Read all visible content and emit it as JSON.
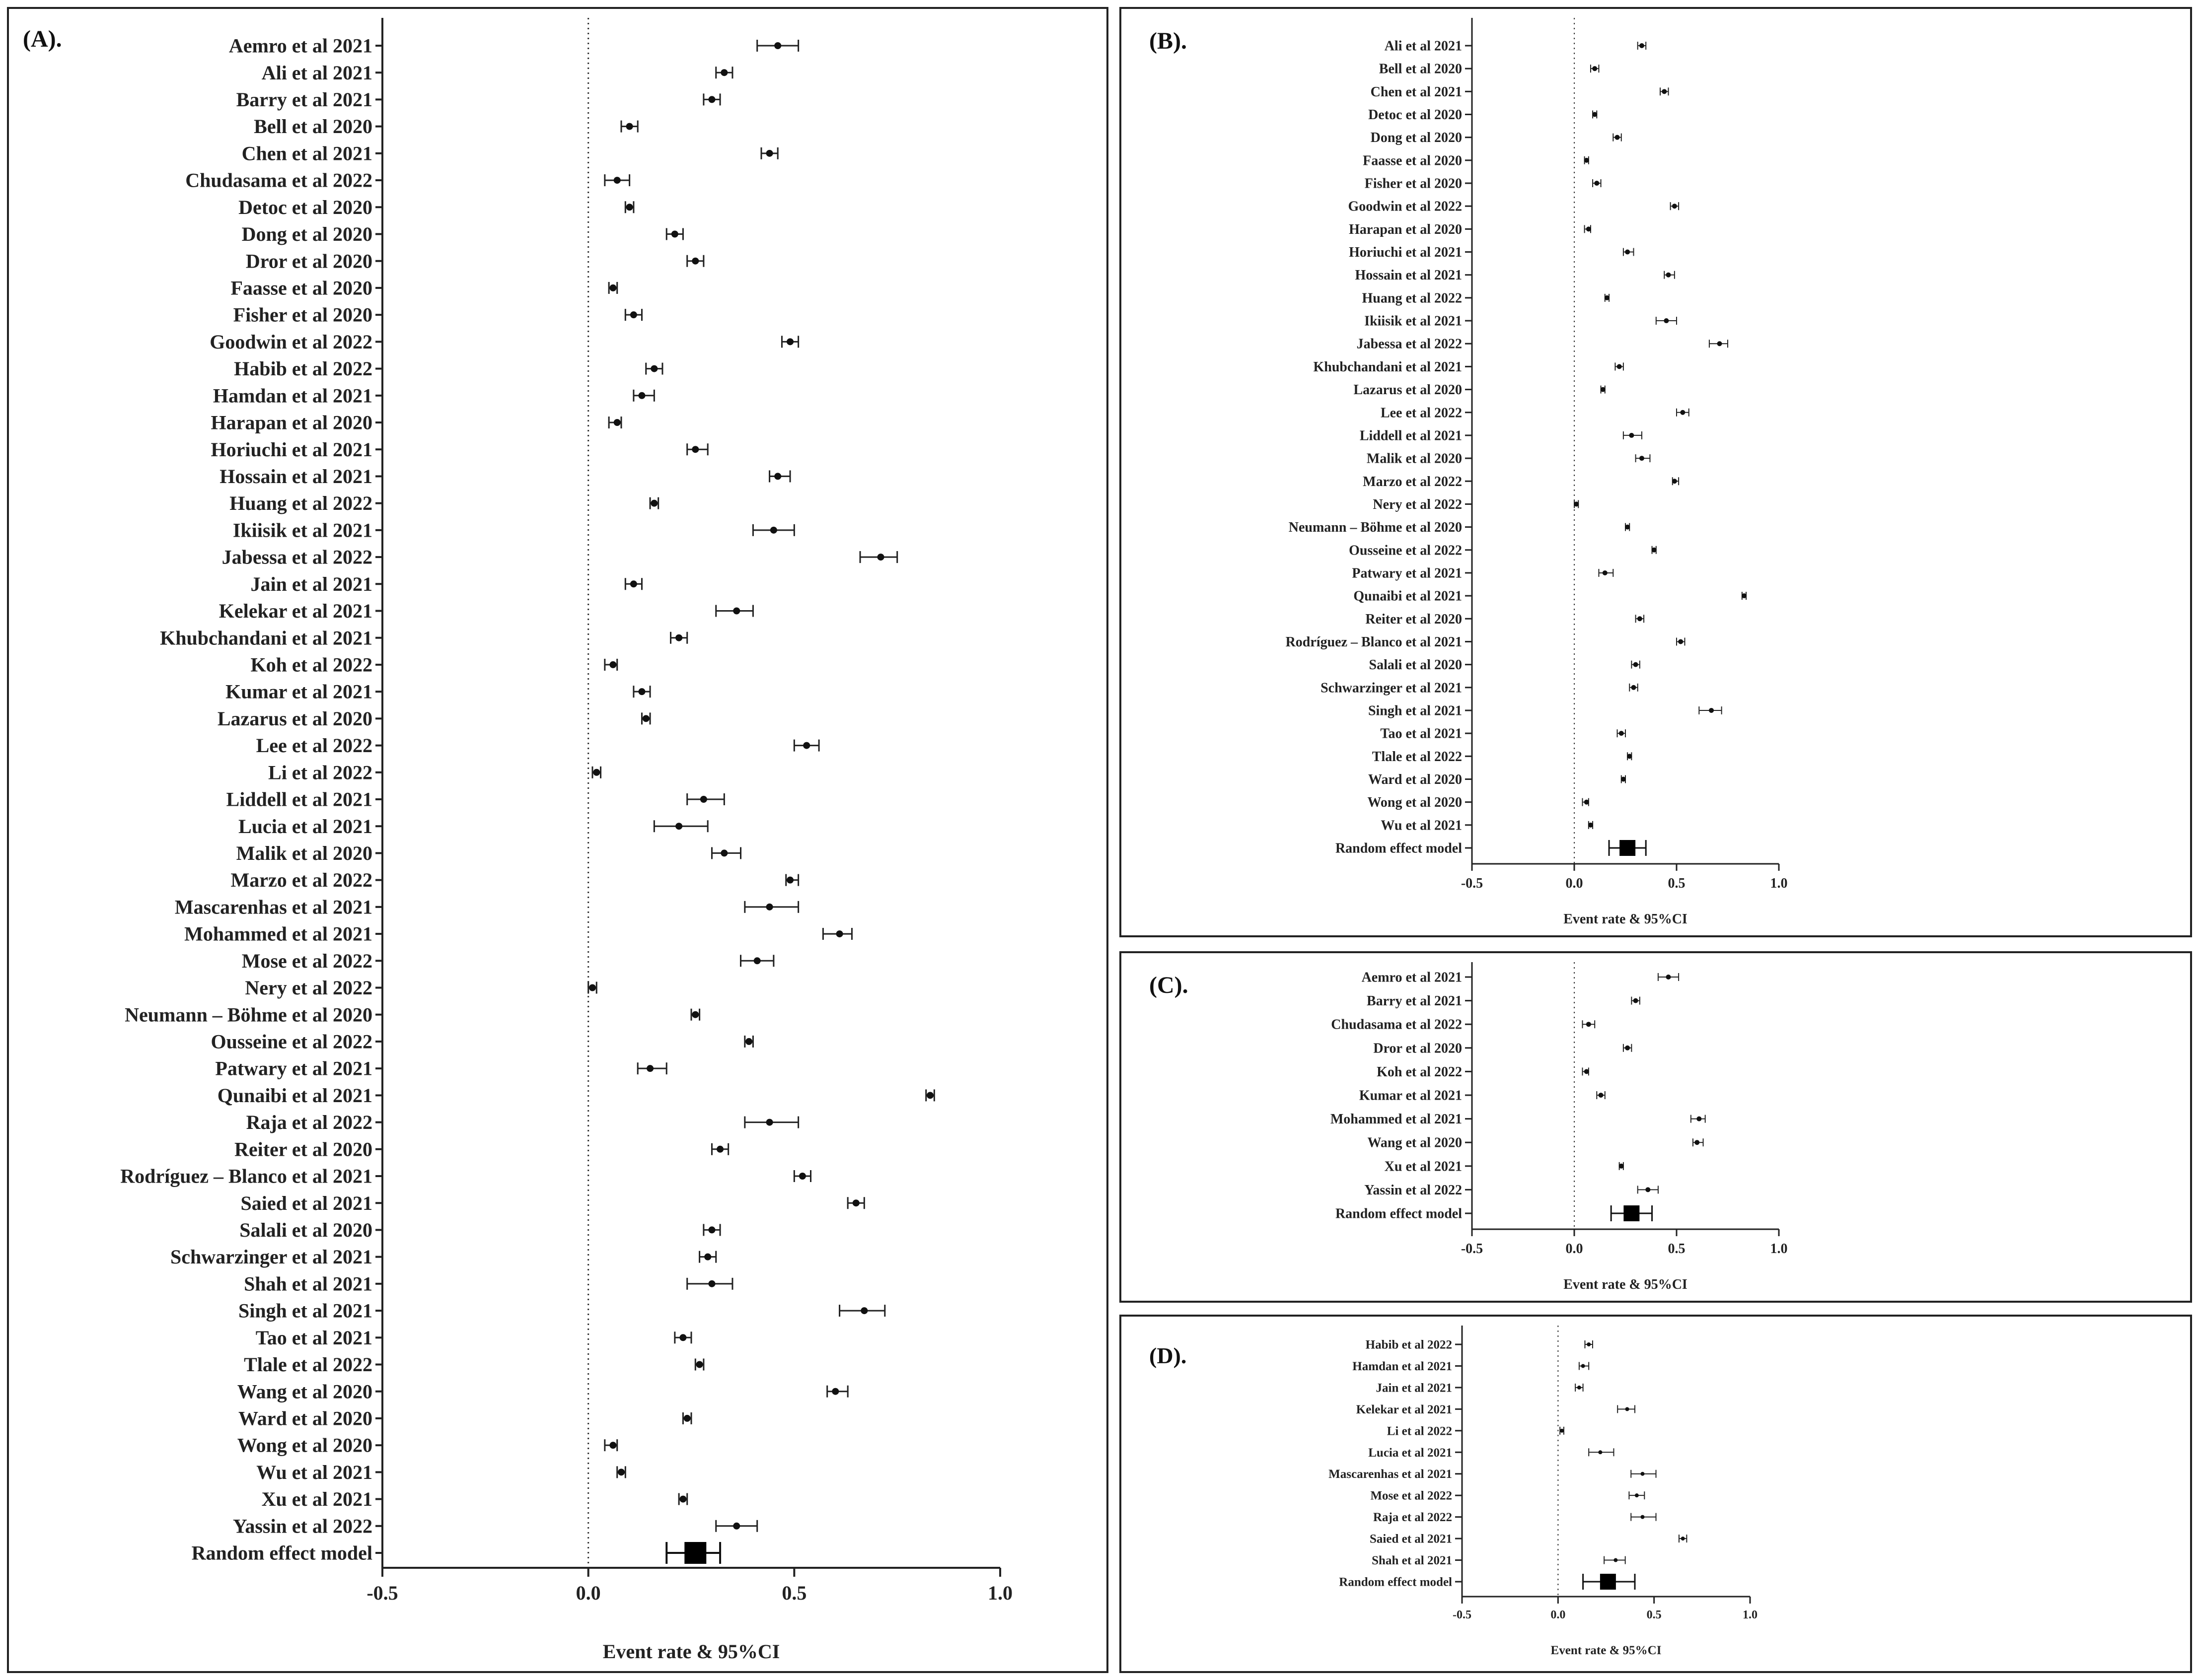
{
  "chart_data": [
    {
      "type": "forest",
      "panel_label": "(A).",
      "xlabel": "Event rate & 95%CI",
      "xlim": [
        -0.5,
        1.0
      ],
      "xticks": [
        -0.5,
        0.0,
        0.5,
        1.0
      ],
      "tick_labels": [
        "-0.5",
        "0.0",
        "0.5",
        "1.0"
      ],
      "studies": [
        {
          "name": "Aemro et al 2021",
          "est": 0.46,
          "lo": 0.41,
          "hi": 0.51
        },
        {
          "name": "Ali et al 2021",
          "est": 0.33,
          "lo": 0.31,
          "hi": 0.35
        },
        {
          "name": "Barry et al 2021",
          "est": 0.3,
          "lo": 0.28,
          "hi": 0.32
        },
        {
          "name": "Bell et al 2020",
          "est": 0.1,
          "lo": 0.08,
          "hi": 0.12
        },
        {
          "name": "Chen et al 2021",
          "est": 0.44,
          "lo": 0.42,
          "hi": 0.46
        },
        {
          "name": "Chudasama et al 2022",
          "est": 0.07,
          "lo": 0.04,
          "hi": 0.1
        },
        {
          "name": "Detoc et al 2020",
          "est": 0.1,
          "lo": 0.09,
          "hi": 0.11
        },
        {
          "name": "Dong et al 2020",
          "est": 0.21,
          "lo": 0.19,
          "hi": 0.23
        },
        {
          "name": "Dror et al 2020",
          "est": 0.26,
          "lo": 0.24,
          "hi": 0.28
        },
        {
          "name": "Faasse et al 2020",
          "est": 0.06,
          "lo": 0.05,
          "hi": 0.07
        },
        {
          "name": "Fisher et al 2020",
          "est": 0.11,
          "lo": 0.09,
          "hi": 0.13
        },
        {
          "name": "Goodwin et al 2022",
          "est": 0.49,
          "lo": 0.47,
          "hi": 0.51
        },
        {
          "name": "Habib et al 2022",
          "est": 0.16,
          "lo": 0.14,
          "hi": 0.18
        },
        {
          "name": "Hamdan et al 2021",
          "est": 0.13,
          "lo": 0.11,
          "hi": 0.16
        },
        {
          "name": "Harapan et al 2020",
          "est": 0.07,
          "lo": 0.05,
          "hi": 0.08
        },
        {
          "name": "Horiuchi et al 2021",
          "est": 0.26,
          "lo": 0.24,
          "hi": 0.29
        },
        {
          "name": "Hossain et al 2021",
          "est": 0.46,
          "lo": 0.44,
          "hi": 0.49
        },
        {
          "name": "Huang et al 2022",
          "est": 0.16,
          "lo": 0.15,
          "hi": 0.17
        },
        {
          "name": "Ikiisik et al 2021",
          "est": 0.45,
          "lo": 0.4,
          "hi": 0.5
        },
        {
          "name": "Jabessa et al 2022",
          "est": 0.71,
          "lo": 0.66,
          "hi": 0.75
        },
        {
          "name": "Jain et al 2021",
          "est": 0.11,
          "lo": 0.09,
          "hi": 0.13
        },
        {
          "name": "Kelekar et al 2021",
          "est": 0.36,
          "lo": 0.31,
          "hi": 0.4
        },
        {
          "name": "Khubchandani et al 2021",
          "est": 0.22,
          "lo": 0.2,
          "hi": 0.24
        },
        {
          "name": "Koh et al 2022",
          "est": 0.06,
          "lo": 0.04,
          "hi": 0.07
        },
        {
          "name": "Kumar et al 2021",
          "est": 0.13,
          "lo": 0.11,
          "hi": 0.15
        },
        {
          "name": "Lazarus et al 2020",
          "est": 0.14,
          "lo": 0.13,
          "hi": 0.15
        },
        {
          "name": "Lee et al 2022",
          "est": 0.53,
          "lo": 0.5,
          "hi": 0.56
        },
        {
          "name": "Li et al 2022",
          "est": 0.02,
          "lo": 0.01,
          "hi": 0.03
        },
        {
          "name": "Liddell et al 2021",
          "est": 0.28,
          "lo": 0.24,
          "hi": 0.33
        },
        {
          "name": "Lucia et al 2021",
          "est": 0.22,
          "lo": 0.16,
          "hi": 0.29
        },
        {
          "name": "Malik et al 2020",
          "est": 0.33,
          "lo": 0.3,
          "hi": 0.37
        },
        {
          "name": "Marzo et al 2022",
          "est": 0.49,
          "lo": 0.48,
          "hi": 0.51
        },
        {
          "name": "Mascarenhas et al 2021",
          "est": 0.44,
          "lo": 0.38,
          "hi": 0.51
        },
        {
          "name": "Mohammed et al 2021",
          "est": 0.61,
          "lo": 0.57,
          "hi": 0.64
        },
        {
          "name": "Mose et al 2022",
          "est": 0.41,
          "lo": 0.37,
          "hi": 0.45
        },
        {
          "name": "Nery et al 2022",
          "est": 0.01,
          "lo": 0.0,
          "hi": 0.02
        },
        {
          "name": "Neumann – Böhme et al 2020",
          "est": 0.26,
          "lo": 0.25,
          "hi": 0.27
        },
        {
          "name": "Ousseine et al 2022",
          "est": 0.39,
          "lo": 0.38,
          "hi": 0.4
        },
        {
          "name": "Patwary et al 2021",
          "est": 0.15,
          "lo": 0.12,
          "hi": 0.19
        },
        {
          "name": "Qunaibi et al 2021",
          "est": 0.83,
          "lo": 0.82,
          "hi": 0.84
        },
        {
          "name": "Raja et al 2022",
          "est": 0.44,
          "lo": 0.38,
          "hi": 0.51
        },
        {
          "name": "Reiter et al 2020",
          "est": 0.32,
          "lo": 0.3,
          "hi": 0.34
        },
        {
          "name": "Rodríguez – Blanco et al 2021",
          "est": 0.52,
          "lo": 0.5,
          "hi": 0.54
        },
        {
          "name": "Saied et al 2021",
          "est": 0.65,
          "lo": 0.63,
          "hi": 0.67
        },
        {
          "name": "Salali et al 2020",
          "est": 0.3,
          "lo": 0.28,
          "hi": 0.32
        },
        {
          "name": "Schwarzinger et al 2021",
          "est": 0.29,
          "lo": 0.27,
          "hi": 0.31
        },
        {
          "name": "Shah et al 2021",
          "est": 0.3,
          "lo": 0.24,
          "hi": 0.35
        },
        {
          "name": "Singh et al 2021",
          "est": 0.67,
          "lo": 0.61,
          "hi": 0.72
        },
        {
          "name": "Tao et al 2021",
          "est": 0.23,
          "lo": 0.21,
          "hi": 0.25
        },
        {
          "name": "Tlale et al 2022",
          "est": 0.27,
          "lo": 0.26,
          "hi": 0.28
        },
        {
          "name": "Wang et al 2020",
          "est": 0.6,
          "lo": 0.58,
          "hi": 0.63
        },
        {
          "name": "Ward et al 2020",
          "est": 0.24,
          "lo": 0.23,
          "hi": 0.25
        },
        {
          "name": "Wong et al 2020",
          "est": 0.06,
          "lo": 0.04,
          "hi": 0.07
        },
        {
          "name": "Wu et al 2021",
          "est": 0.08,
          "lo": 0.07,
          "hi": 0.09
        },
        {
          "name": "Xu et al 2021",
          "est": 0.23,
          "lo": 0.22,
          "hi": 0.24
        },
        {
          "name": "Yassin et al 2022",
          "est": 0.36,
          "lo": 0.31,
          "hi": 0.41
        }
      ],
      "summary": {
        "name": "Random effect model",
        "est": 0.26,
        "lo": 0.19,
        "hi": 0.32
      }
    },
    {
      "type": "forest",
      "panel_label": "(B).",
      "xlabel": "Event rate & 95%CI",
      "xlim": [
        -0.5,
        1.0
      ],
      "xticks": [
        -0.5,
        0.0,
        0.5,
        1.0
      ],
      "tick_labels": [
        "-0.5",
        "0.0",
        "0.5",
        "1.0"
      ],
      "studies": [
        {
          "name": "Ali et al 2021",
          "est": 0.33,
          "lo": 0.31,
          "hi": 0.35
        },
        {
          "name": "Bell et al 2020",
          "est": 0.1,
          "lo": 0.08,
          "hi": 0.12
        },
        {
          "name": "Chen et al 2021",
          "est": 0.44,
          "lo": 0.42,
          "hi": 0.46
        },
        {
          "name": "Detoc et al 2020",
          "est": 0.1,
          "lo": 0.09,
          "hi": 0.11
        },
        {
          "name": "Dong et al 2020",
          "est": 0.21,
          "lo": 0.19,
          "hi": 0.23
        },
        {
          "name": "Faasse et al 2020",
          "est": 0.06,
          "lo": 0.05,
          "hi": 0.07
        },
        {
          "name": "Fisher et al 2020",
          "est": 0.11,
          "lo": 0.09,
          "hi": 0.13
        },
        {
          "name": "Goodwin et al 2022",
          "est": 0.49,
          "lo": 0.47,
          "hi": 0.51
        },
        {
          "name": "Harapan et al 2020",
          "est": 0.07,
          "lo": 0.05,
          "hi": 0.08
        },
        {
          "name": "Horiuchi et al 2021",
          "est": 0.26,
          "lo": 0.24,
          "hi": 0.29
        },
        {
          "name": "Hossain et al 2021",
          "est": 0.46,
          "lo": 0.44,
          "hi": 0.49
        },
        {
          "name": "Huang et al 2022",
          "est": 0.16,
          "lo": 0.15,
          "hi": 0.17
        },
        {
          "name": "Ikiisik et al 2021",
          "est": 0.45,
          "lo": 0.4,
          "hi": 0.5
        },
        {
          "name": "Jabessa et al 2022",
          "est": 0.71,
          "lo": 0.66,
          "hi": 0.75
        },
        {
          "name": "Khubchandani et al 2021",
          "est": 0.22,
          "lo": 0.2,
          "hi": 0.24
        },
        {
          "name": "Lazarus et al 2020",
          "est": 0.14,
          "lo": 0.13,
          "hi": 0.15
        },
        {
          "name": "Lee et al 2022",
          "est": 0.53,
          "lo": 0.5,
          "hi": 0.56
        },
        {
          "name": "Liddell et al 2021",
          "est": 0.28,
          "lo": 0.24,
          "hi": 0.33
        },
        {
          "name": "Malik et al 2020",
          "est": 0.33,
          "lo": 0.3,
          "hi": 0.37
        },
        {
          "name": "Marzo et al 2022",
          "est": 0.49,
          "lo": 0.48,
          "hi": 0.51
        },
        {
          "name": "Nery et al 2022",
          "est": 0.01,
          "lo": 0.0,
          "hi": 0.02
        },
        {
          "name": "Neumann – Böhme et al 2020",
          "est": 0.26,
          "lo": 0.25,
          "hi": 0.27
        },
        {
          "name": "Ousseine et al 2022",
          "est": 0.39,
          "lo": 0.38,
          "hi": 0.4
        },
        {
          "name": "Patwary et al 2021",
          "est": 0.15,
          "lo": 0.12,
          "hi": 0.19
        },
        {
          "name": "Qunaibi et al 2021",
          "est": 0.83,
          "lo": 0.82,
          "hi": 0.84
        },
        {
          "name": "Reiter et al 2020",
          "est": 0.32,
          "lo": 0.3,
          "hi": 0.34
        },
        {
          "name": "Rodríguez – Blanco et al 2021",
          "est": 0.52,
          "lo": 0.5,
          "hi": 0.54
        },
        {
          "name": "Salali et al 2020",
          "est": 0.3,
          "lo": 0.28,
          "hi": 0.32
        },
        {
          "name": "Schwarzinger et al 2021",
          "est": 0.29,
          "lo": 0.27,
          "hi": 0.31
        },
        {
          "name": "Singh et al 2021",
          "est": 0.67,
          "lo": 0.61,
          "hi": 0.72
        },
        {
          "name": "Tao et al 2021",
          "est": 0.23,
          "lo": 0.21,
          "hi": 0.25
        },
        {
          "name": "Tlale et al 2022",
          "est": 0.27,
          "lo": 0.26,
          "hi": 0.28
        },
        {
          "name": "Ward et al 2020",
          "est": 0.24,
          "lo": 0.23,
          "hi": 0.25
        },
        {
          "name": "Wong et al 2020",
          "est": 0.06,
          "lo": 0.04,
          "hi": 0.07
        },
        {
          "name": "Wu et al 2021",
          "est": 0.08,
          "lo": 0.07,
          "hi": 0.09
        }
      ],
      "summary": {
        "name": "Random effect model",
        "est": 0.26,
        "lo": 0.17,
        "hi": 0.35
      }
    },
    {
      "type": "forest",
      "panel_label": "(C).",
      "xlabel": "Event rate & 95%CI",
      "xlim": [
        -0.5,
        1.0
      ],
      "xticks": [
        -0.5,
        0.0,
        0.5,
        1.0
      ],
      "tick_labels": [
        "-0.5",
        "0.0",
        "0.5",
        "1.0"
      ],
      "studies": [
        {
          "name": "Aemro et al 2021",
          "est": 0.46,
          "lo": 0.41,
          "hi": 0.51
        },
        {
          "name": "Barry et al 2021",
          "est": 0.3,
          "lo": 0.28,
          "hi": 0.32
        },
        {
          "name": "Chudasama et al 2022",
          "est": 0.07,
          "lo": 0.04,
          "hi": 0.1
        },
        {
          "name": "Dror et al 2020",
          "est": 0.26,
          "lo": 0.24,
          "hi": 0.28
        },
        {
          "name": "Koh et al 2022",
          "est": 0.06,
          "lo": 0.04,
          "hi": 0.07
        },
        {
          "name": "Kumar et al 2021",
          "est": 0.13,
          "lo": 0.11,
          "hi": 0.15
        },
        {
          "name": "Mohammed et al 2021",
          "est": 0.61,
          "lo": 0.57,
          "hi": 0.64
        },
        {
          "name": "Wang et al 2020",
          "est": 0.6,
          "lo": 0.58,
          "hi": 0.63
        },
        {
          "name": "Xu et al 2021",
          "est": 0.23,
          "lo": 0.22,
          "hi": 0.24
        },
        {
          "name": "Yassin et al 2022",
          "est": 0.36,
          "lo": 0.31,
          "hi": 0.41
        }
      ],
      "summary": {
        "name": "Random effect model",
        "est": 0.28,
        "lo": 0.18,
        "hi": 0.38
      }
    },
    {
      "type": "forest",
      "panel_label": "(D).",
      "xlabel": "Event rate & 95%CI",
      "xlim": [
        -0.5,
        1.0
      ],
      "xticks": [
        -0.5,
        0.0,
        0.5,
        1.0
      ],
      "tick_labels": [
        "-0.5",
        "0.0",
        "0.5",
        "1.0"
      ],
      "studies": [
        {
          "name": "Habib et al 2022",
          "est": 0.16,
          "lo": 0.14,
          "hi": 0.18
        },
        {
          "name": "Hamdan et al 2021",
          "est": 0.13,
          "lo": 0.11,
          "hi": 0.16
        },
        {
          "name": "Jain et al 2021",
          "est": 0.11,
          "lo": 0.09,
          "hi": 0.13
        },
        {
          "name": "Kelekar et al 2021",
          "est": 0.36,
          "lo": 0.31,
          "hi": 0.4
        },
        {
          "name": "Li et al 2022",
          "est": 0.02,
          "lo": 0.01,
          "hi": 0.03
        },
        {
          "name": "Lucia et al 2021",
          "est": 0.22,
          "lo": 0.16,
          "hi": 0.29
        },
        {
          "name": "Mascarenhas et al 2021",
          "est": 0.44,
          "lo": 0.38,
          "hi": 0.51
        },
        {
          "name": "Mose et al 2022",
          "est": 0.41,
          "lo": 0.37,
          "hi": 0.45
        },
        {
          "name": "Raja et al 2022",
          "est": 0.44,
          "lo": 0.38,
          "hi": 0.51
        },
        {
          "name": "Saied et al 2021",
          "est": 0.65,
          "lo": 0.63,
          "hi": 0.67
        },
        {
          "name": "Shah et al 2021",
          "est": 0.3,
          "lo": 0.24,
          "hi": 0.35
        }
      ],
      "summary": {
        "name": "Random effect model",
        "est": 0.26,
        "lo": 0.13,
        "hi": 0.4
      }
    }
  ]
}
